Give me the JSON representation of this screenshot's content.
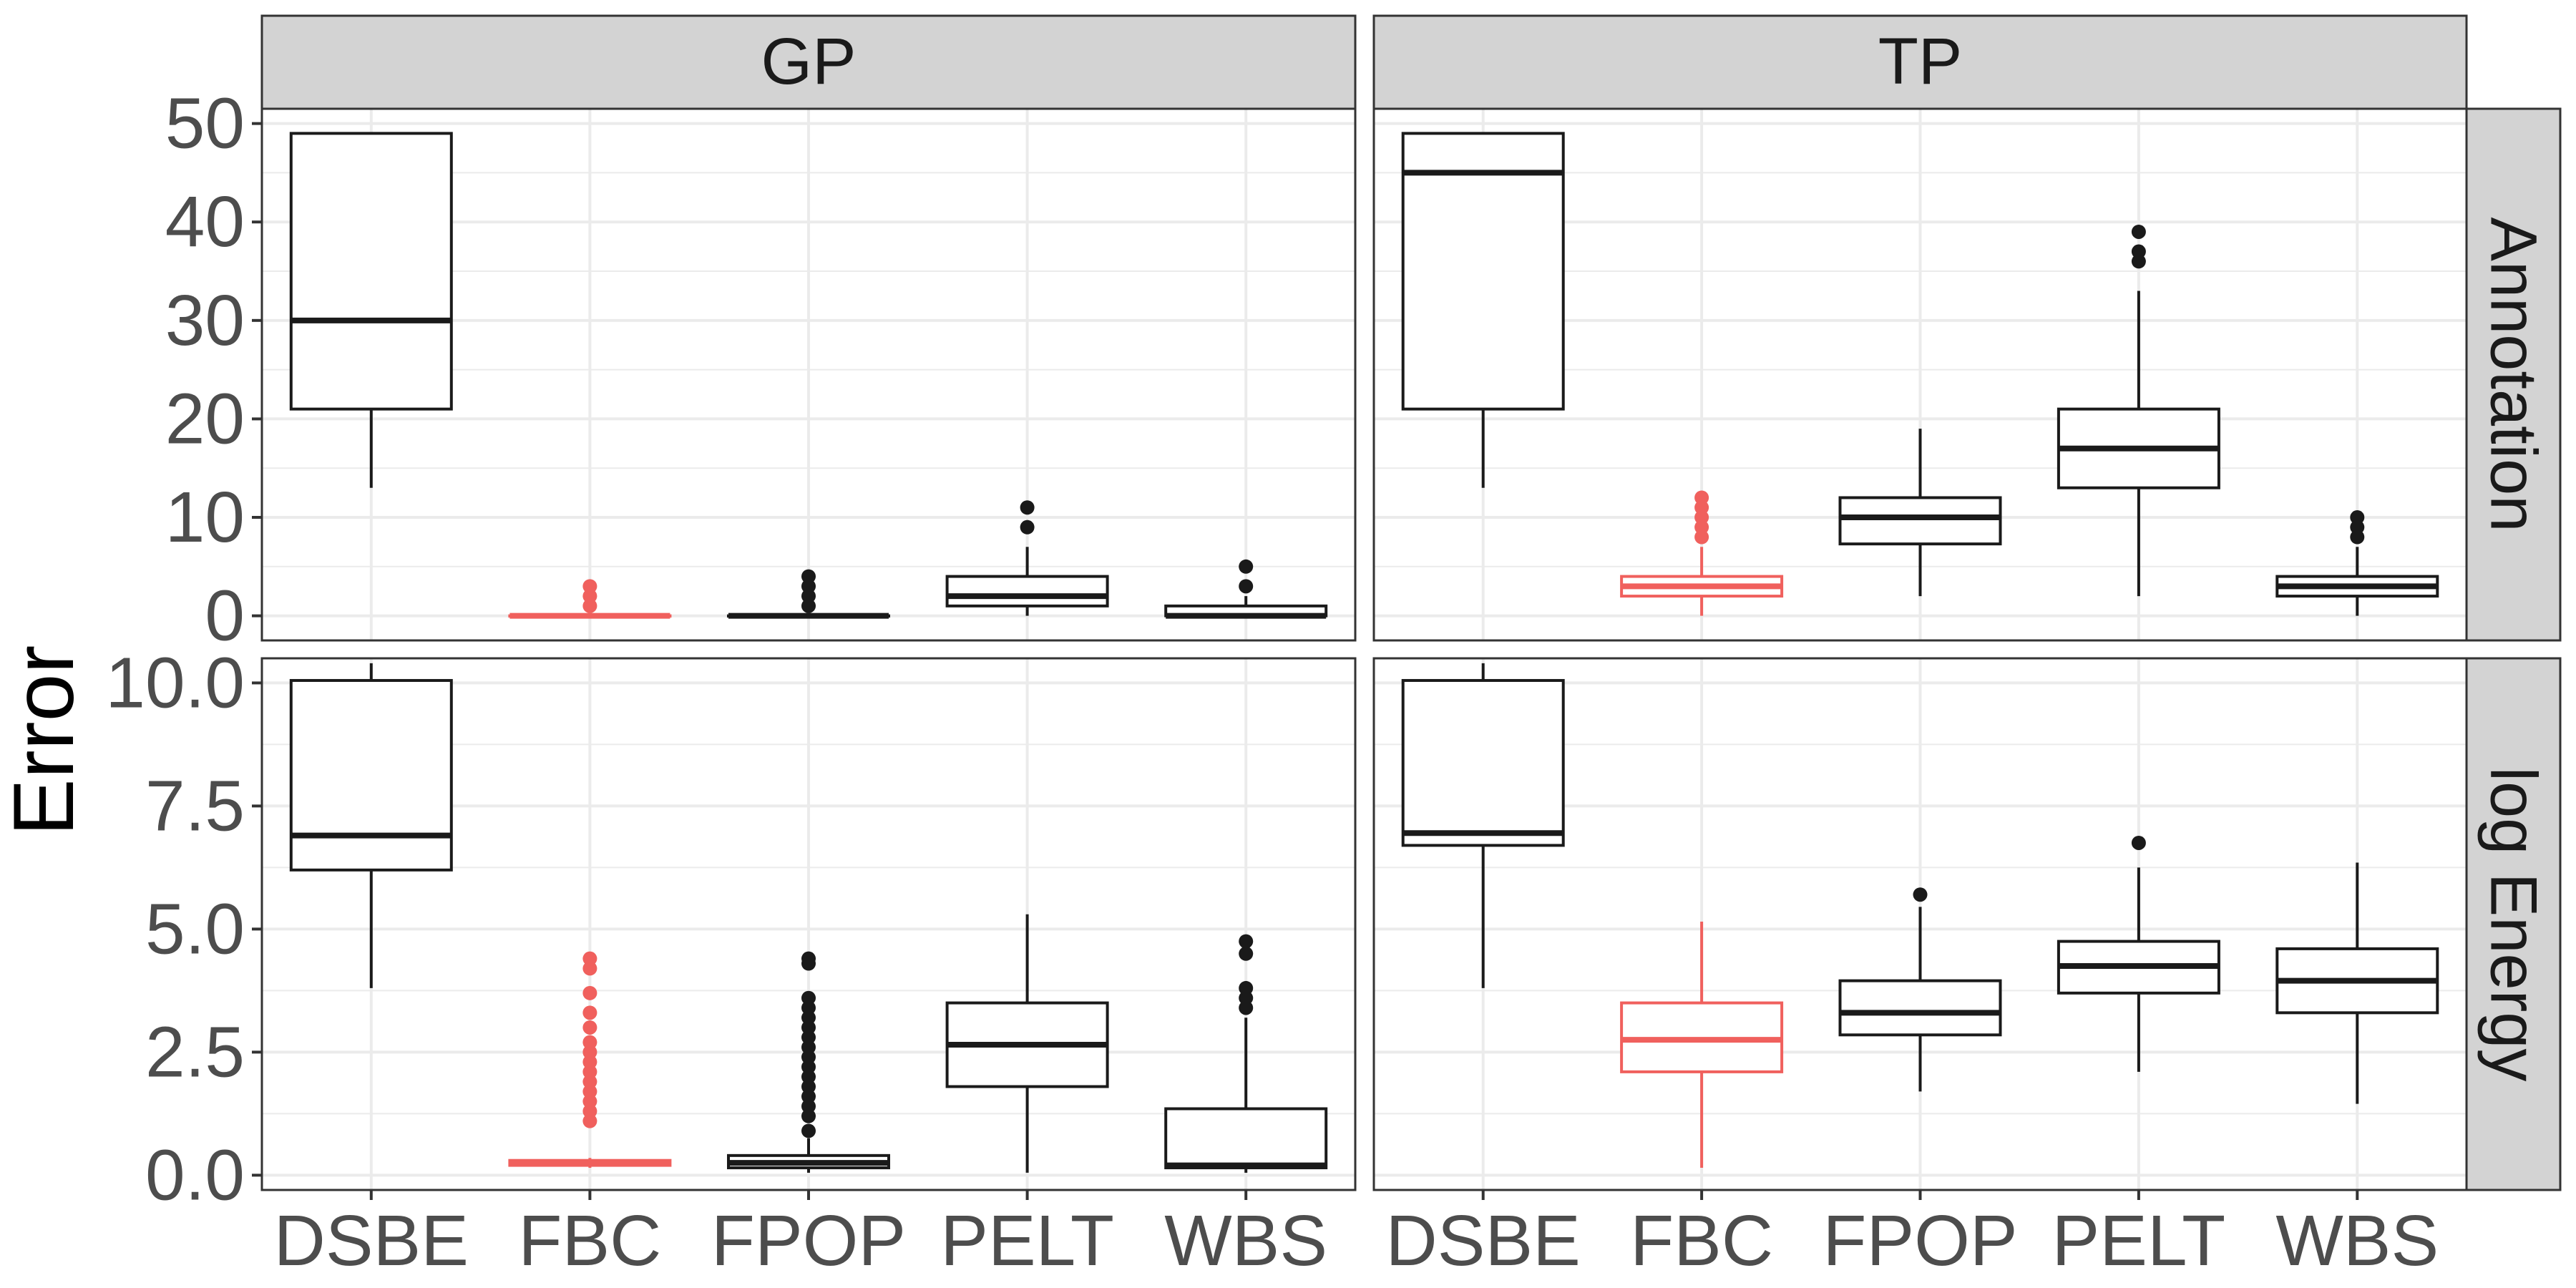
{
  "chart_data": {
    "type": "boxplot",
    "ylabel": "Error",
    "categories": [
      "DSBE",
      "FBC",
      "FPOP",
      "PELT",
      "WBS"
    ],
    "columns": [
      "GP",
      "TP"
    ],
    "rows": [
      "Annotation",
      "log Energy"
    ],
    "highlight_category": "FBC",
    "colors": {
      "default": "#1a1a1a",
      "highlight": "#f0605d",
      "strip_bg": "#d3d3d3",
      "grid": "#ebebeb"
    },
    "row_axes": [
      {
        "row": "Annotation",
        "ylim": [
          -2.5,
          51.5
        ],
        "ticks": [
          0,
          10,
          20,
          30,
          40,
          50
        ],
        "tick_labels": [
          "0",
          "10",
          "20",
          "30",
          "40",
          "50"
        ]
      },
      {
        "row": "log Energy",
        "ylim": [
          -0.3,
          10.5
        ],
        "ticks": [
          0,
          2.5,
          5,
          7.5,
          10
        ],
        "tick_labels": [
          "0.0",
          "2.5",
          "5.0",
          "7.5",
          "10.0"
        ]
      }
    ],
    "panels": [
      {
        "col": "GP",
        "row": "Annotation",
        "boxes": [
          {
            "cat": "DSBE",
            "lower": 13,
            "q1": 21,
            "median": 30,
            "q3": 49,
            "upper": 49,
            "outliers": []
          },
          {
            "cat": "FBC",
            "lower": 0,
            "q1": 0,
            "median": 0,
            "q3": 0,
            "upper": 0,
            "outliers": [
              1,
              2,
              3
            ]
          },
          {
            "cat": "FPOP",
            "lower": 0,
            "q1": 0,
            "median": 0,
            "q3": 0,
            "upper": 0,
            "outliers": [
              1,
              2,
              3,
              4
            ]
          },
          {
            "cat": "PELT",
            "lower": 0,
            "q1": 1,
            "median": 2,
            "q3": 4,
            "upper": 7,
            "outliers": [
              9,
              11
            ]
          },
          {
            "cat": "WBS",
            "lower": 0,
            "q1": 0,
            "median": 0,
            "q3": 1,
            "upper": 2,
            "outliers": [
              3,
              5
            ]
          }
        ]
      },
      {
        "col": "TP",
        "row": "Annotation",
        "boxes": [
          {
            "cat": "DSBE",
            "lower": 13,
            "q1": 21,
            "median": 45,
            "q3": 49,
            "upper": 49,
            "outliers": []
          },
          {
            "cat": "FBC",
            "lower": 0,
            "q1": 2,
            "median": 3,
            "q3": 4,
            "upper": 7,
            "outliers": [
              8,
              9,
              10,
              11,
              12
            ]
          },
          {
            "cat": "FPOP",
            "lower": 2,
            "q1": 7.3,
            "median": 10,
            "q3": 12,
            "upper": 19,
            "outliers": []
          },
          {
            "cat": "PELT",
            "lower": 2,
            "q1": 13,
            "median": 17,
            "q3": 21,
            "upper": 33,
            "outliers": [
              36,
              37,
              39
            ]
          },
          {
            "cat": "WBS",
            "lower": 0,
            "q1": 2,
            "median": 3,
            "q3": 4,
            "upper": 7,
            "outliers": [
              8,
              9,
              10
            ]
          }
        ]
      },
      {
        "col": "GP",
        "row": "log Energy",
        "boxes": [
          {
            "cat": "DSBE",
            "lower": 3.8,
            "q1": 6.2,
            "median": 6.9,
            "q3": 10.05,
            "upper": 10.4,
            "outliers": []
          },
          {
            "cat": "FBC",
            "lower": 0.15,
            "q1": 0.2,
            "median": 0.25,
            "q3": 0.3,
            "upper": 0.35,
            "outliers": [
              1.1,
              1.3,
              1.5,
              1.7,
              1.9,
              2.1,
              2.3,
              2.5,
              2.7,
              3.0,
              3.3,
              3.7,
              4.2,
              4.4
            ]
          },
          {
            "cat": "FPOP",
            "lower": 0.05,
            "q1": 0.15,
            "median": 0.25,
            "q3": 0.4,
            "upper": 0.75,
            "outliers": [
              0.9,
              1.2,
              1.4,
              1.6,
              1.8,
              2.0,
              2.2,
              2.4,
              2.6,
              2.8,
              3.0,
              3.2,
              3.4,
              3.6,
              4.3,
              4.4
            ]
          },
          {
            "cat": "PELT",
            "lower": 0.05,
            "q1": 1.8,
            "median": 2.65,
            "q3": 3.5,
            "upper": 5.3,
            "outliers": []
          },
          {
            "cat": "WBS",
            "lower": 0.05,
            "q1": 0.15,
            "median": 0.2,
            "q3": 1.35,
            "upper": 3.2,
            "outliers": [
              3.4,
              3.6,
              3.8,
              4.5,
              4.75
            ]
          }
        ]
      },
      {
        "col": "TP",
        "row": "log Energy",
        "boxes": [
          {
            "cat": "DSBE",
            "lower": 3.8,
            "q1": 6.7,
            "median": 6.95,
            "q3": 10.05,
            "upper": 10.4,
            "outliers": []
          },
          {
            "cat": "FBC",
            "lower": 0.15,
            "q1": 2.1,
            "median": 2.75,
            "q3": 3.5,
            "upper": 5.15,
            "outliers": []
          },
          {
            "cat": "FPOP",
            "lower": 1.7,
            "q1": 2.85,
            "median": 3.3,
            "q3": 3.95,
            "upper": 5.45,
            "outliers": [
              5.7
            ]
          },
          {
            "cat": "PELT",
            "lower": 2.1,
            "q1": 3.7,
            "median": 4.25,
            "q3": 4.75,
            "upper": 6.25,
            "outliers": [
              6.75
            ]
          },
          {
            "cat": "WBS",
            "lower": 1.45,
            "q1": 3.3,
            "median": 3.95,
            "q3": 4.6,
            "upper": 6.35,
            "outliers": []
          }
        ]
      }
    ]
  }
}
